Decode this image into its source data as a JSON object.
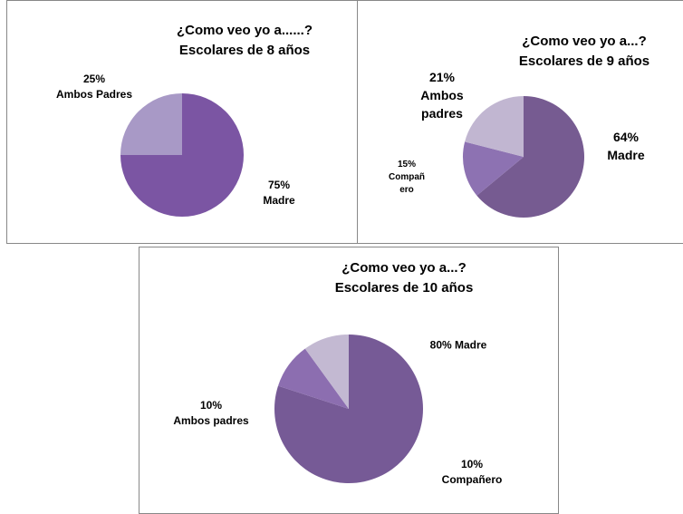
{
  "chart_data": [
    {
      "type": "pie",
      "title": "¿Como veo yo a......?",
      "subtitle": "Escolares de 8 años",
      "categories": [
        "Madre",
        "Ambos Padres"
      ],
      "values": [
        75,
        25
      ],
      "value_labels": [
        "75%",
        "25%"
      ],
      "colors": [
        "#7b55a3",
        "#a899c6"
      ]
    },
    {
      "type": "pie",
      "title": "¿Como veo yo a...?",
      "subtitle": "Escolares de 9 años",
      "categories": [
        "Madre",
        "Compañero",
        "Ambos padres"
      ],
      "values": [
        64,
        15,
        21
      ],
      "value_labels": [
        "64%",
        "15%",
        "21%"
      ],
      "colors": [
        "#765b91",
        "#8d72b2",
        "#c1b6d1"
      ]
    },
    {
      "type": "pie",
      "title": "¿Como veo yo a...?",
      "subtitle": "Escolares de 10 años",
      "categories": [
        "Madre",
        "Compañero",
        "Ambos padres"
      ],
      "values": [
        80,
        10,
        10
      ],
      "value_labels": [
        "80%",
        "10%",
        "10%"
      ],
      "colors": [
        "#765a96",
        "#8c6eb0",
        "#c3b9d2"
      ]
    }
  ]
}
